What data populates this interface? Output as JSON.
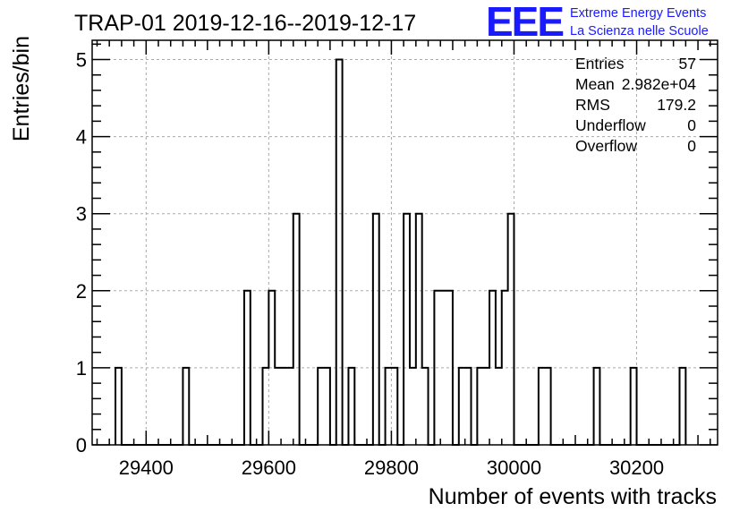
{
  "title": "TRAP-01 2019-12-16--2019-12-17",
  "logo": {
    "mark": "EEE",
    "line1": "Extreme Energy Events",
    "line2": "La Scienza nelle Scuole",
    "color": "#1a1aff"
  },
  "stats": {
    "rows": [
      {
        "label": "Entries",
        "value": "57"
      },
      {
        "label": "Mean",
        "value": "2.982e+04"
      },
      {
        "label": "RMS",
        "value": "179.2"
      },
      {
        "label": "Underflow",
        "value": "0"
      },
      {
        "label": "Overflow",
        "value": "0"
      }
    ]
  },
  "chart_data": {
    "type": "bar",
    "histogram": true,
    "title": "TRAP-01 2019-12-16--2019-12-17",
    "xlabel": "Number of events with tracks",
    "ylabel": "Entries/bin",
    "xlim": [
      29312,
      30332
    ],
    "ylim": [
      0,
      5.25
    ],
    "bin_width": 10,
    "x_ticks": [
      29400,
      29600,
      29800,
      30000,
      30200
    ],
    "y_ticks": [
      0,
      1,
      2,
      3,
      4,
      5
    ],
    "grid": true,
    "line_color": "#000000",
    "bins": [
      {
        "x": 29350,
        "y": 1
      },
      {
        "x": 29460,
        "y": 1
      },
      {
        "x": 29560,
        "y": 2
      },
      {
        "x": 29590,
        "y": 1
      },
      {
        "x": 29600,
        "y": 2
      },
      {
        "x": 29610,
        "y": 1
      },
      {
        "x": 29620,
        "y": 1
      },
      {
        "x": 29630,
        "y": 1
      },
      {
        "x": 29640,
        "y": 3
      },
      {
        "x": 29680,
        "y": 1
      },
      {
        "x": 29690,
        "y": 1
      },
      {
        "x": 29710,
        "y": 5
      },
      {
        "x": 29730,
        "y": 1
      },
      {
        "x": 29770,
        "y": 3
      },
      {
        "x": 29790,
        "y": 1
      },
      {
        "x": 29800,
        "y": 1
      },
      {
        "x": 29820,
        "y": 3
      },
      {
        "x": 29830,
        "y": 1
      },
      {
        "x": 29840,
        "y": 3
      },
      {
        "x": 29850,
        "y": 1
      },
      {
        "x": 29870,
        "y": 2
      },
      {
        "x": 29880,
        "y": 2
      },
      {
        "x": 29890,
        "y": 2
      },
      {
        "x": 29910,
        "y": 1
      },
      {
        "x": 29920,
        "y": 1
      },
      {
        "x": 29940,
        "y": 1
      },
      {
        "x": 29950,
        "y": 1
      },
      {
        "x": 29960,
        "y": 2
      },
      {
        "x": 29970,
        "y": 1
      },
      {
        "x": 29980,
        "y": 2
      },
      {
        "x": 29990,
        "y": 3
      },
      {
        "x": 30040,
        "y": 1
      },
      {
        "x": 30050,
        "y": 1
      },
      {
        "x": 30130,
        "y": 1
      },
      {
        "x": 30190,
        "y": 1
      },
      {
        "x": 30270,
        "y": 1
      }
    ]
  }
}
